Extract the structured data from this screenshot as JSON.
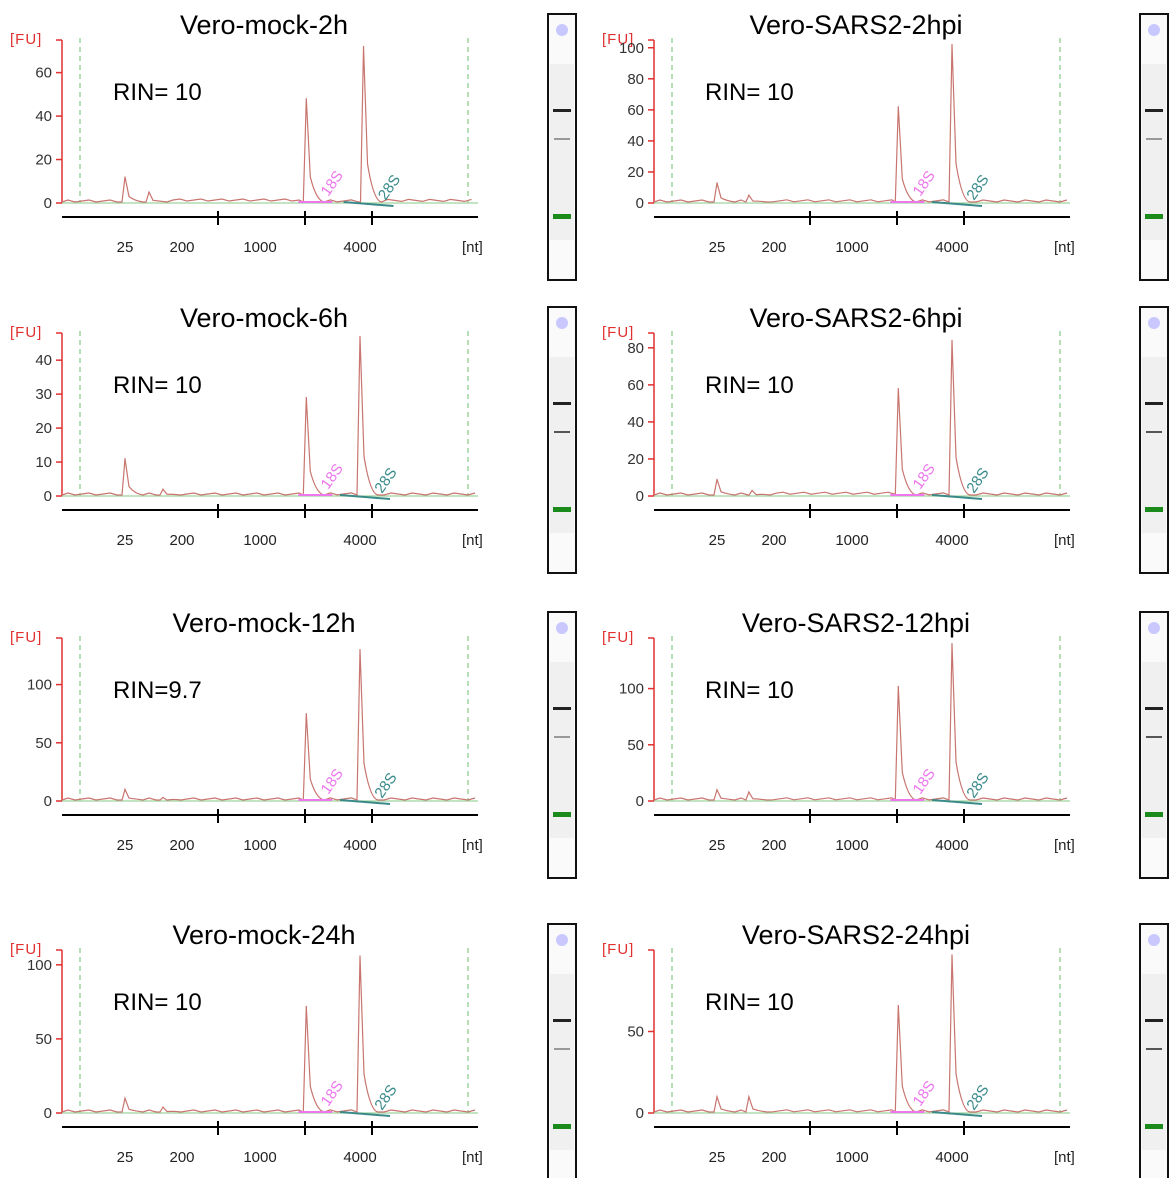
{
  "units": {
    "y": "[FU]",
    "x": "[nt]"
  },
  "peak_labels": {
    "small": "18S",
    "large": "28S"
  },
  "x_ticks": [
    "25",
    "200",
    "1000",
    "4000"
  ],
  "colors": {
    "trace": "#c8756f",
    "axis": "#e03030",
    "baseline": "#9fd39f",
    "dashed": "#6fbf6f",
    "label_18S": "#ee77ee",
    "label_28S": "#3a8a8a",
    "marker_band": "#1a8a1a",
    "band_dark": "#222222",
    "band_light": "#999999",
    "gel_marker_dot": "#c8c8ff"
  },
  "chart_data": [
    {
      "type": "line",
      "title": "Vero-mock-2h",
      "rin": "RIN= 10",
      "ylim": [
        0,
        75
      ],
      "yticks": [
        0,
        20,
        40,
        60
      ],
      "x": [
        25,
        200,
        1000,
        4000
      ],
      "peaks": [
        {
          "nt": 25,
          "fu": 12
        },
        {
          "nt": 60,
          "fu": 5
        },
        {
          "nt": 1900,
          "fu": 48
        },
        {
          "nt": 4200,
          "fu": 72
        }
      ],
      "gel": {
        "band_28S": "dark",
        "band_18S": "light"
      }
    },
    {
      "type": "line",
      "title": "Vero-SARS2-2hpi",
      "rin": "RIN= 10",
      "ylim": [
        0,
        105
      ],
      "yticks": [
        0,
        20,
        40,
        60,
        80,
        100
      ],
      "x": [
        25,
        200,
        1000,
        4000
      ],
      "peaks": [
        {
          "nt": 25,
          "fu": 13
        },
        {
          "nt": 80,
          "fu": 5
        },
        {
          "nt": 1900,
          "fu": 62
        },
        {
          "nt": 4000,
          "fu": 102
        }
      ],
      "gel": {
        "band_28S": "dark",
        "band_18S": "light"
      }
    },
    {
      "type": "line",
      "title": "Vero-mock-6h",
      "rin": "RIN= 10",
      "ylim": [
        0,
        48
      ],
      "yticks": [
        0,
        10,
        20,
        30,
        40
      ],
      "x": [
        25,
        200,
        1000,
        4000
      ],
      "peaks": [
        {
          "nt": 25,
          "fu": 11
        },
        {
          "nt": 100,
          "fu": 2
        },
        {
          "nt": 1900,
          "fu": 29
        },
        {
          "nt": 4000,
          "fu": 47
        }
      ],
      "gel": {
        "band_28S": "dark",
        "band_18S": "dark"
      }
    },
    {
      "type": "line",
      "title": "Vero-SARS2-6hpi",
      "rin": "RIN= 10",
      "ylim": [
        0,
        88
      ],
      "yticks": [
        0,
        20,
        40,
        60,
        80
      ],
      "x": [
        25,
        200,
        1000,
        4000
      ],
      "peaks": [
        {
          "nt": 25,
          "fu": 9
        },
        {
          "nt": 90,
          "fu": 3
        },
        {
          "nt": 1900,
          "fu": 58
        },
        {
          "nt": 4000,
          "fu": 84
        }
      ],
      "gel": {
        "band_28S": "dark",
        "band_18S": "dark"
      }
    },
    {
      "type": "line",
      "title": "Vero-mock-12h",
      "rin": "RIN=9.7",
      "ylim": [
        0,
        140
      ],
      "yticks": [
        0,
        50,
        100
      ],
      "x": [
        25,
        200,
        1000,
        4000
      ],
      "peaks": [
        {
          "nt": 25,
          "fu": 10
        },
        {
          "nt": 100,
          "fu": 3
        },
        {
          "nt": 1900,
          "fu": 75
        },
        {
          "nt": 4000,
          "fu": 130
        }
      ],
      "gel": {
        "band_28S": "dark",
        "band_18S": "light"
      }
    },
    {
      "type": "line",
      "title": "Vero-SARS2-12hpi",
      "rin": "RIN= 10",
      "ylim": [
        0,
        145
      ],
      "yticks": [
        0,
        50,
        100
      ],
      "x": [
        25,
        200,
        1000,
        4000
      ],
      "peaks": [
        {
          "nt": 25,
          "fu": 10
        },
        {
          "nt": 80,
          "fu": 8
        },
        {
          "nt": 1900,
          "fu": 102
        },
        {
          "nt": 4000,
          "fu": 140
        }
      ],
      "gel": {
        "band_28S": "dark",
        "band_18S": "dark"
      }
    },
    {
      "type": "line",
      "title": "Vero-mock-24h",
      "rin": "RIN= 10",
      "ylim": [
        0,
        110
      ],
      "yticks": [
        0,
        50,
        100
      ],
      "x": [
        25,
        200,
        1000,
        4000
      ],
      "peaks": [
        {
          "nt": 25,
          "fu": 10
        },
        {
          "nt": 100,
          "fu": 4
        },
        {
          "nt": 1900,
          "fu": 72
        },
        {
          "nt": 4000,
          "fu": 106
        }
      ],
      "gel": {
        "band_28S": "dark",
        "band_18S": "light"
      }
    },
    {
      "type": "line",
      "title": "Vero-SARS2-24hpi",
      "rin": "RIN= 10",
      "ylim": [
        0,
        100
      ],
      "yticks": [
        0,
        50
      ],
      "x": [
        25,
        200,
        1000,
        4000
      ],
      "peaks": [
        {
          "nt": 25,
          "fu": 10
        },
        {
          "nt": 80,
          "fu": 10
        },
        {
          "nt": 1900,
          "fu": 66
        },
        {
          "nt": 4000,
          "fu": 97
        }
      ],
      "gel": {
        "band_28S": "dark",
        "band_18S": "dark"
      }
    }
  ]
}
